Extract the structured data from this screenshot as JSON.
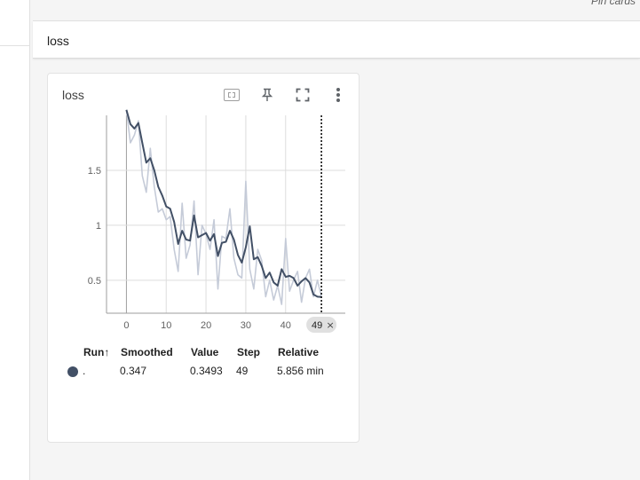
{
  "topbar": {
    "pin_cards": "Pin cards"
  },
  "group": {
    "title": "loss"
  },
  "card": {
    "title": "loss",
    "icons": [
      "fit-domain-icon",
      "pin-icon",
      "fullscreen-icon",
      "more-vert-icon"
    ],
    "step_badge": "49",
    "legend": {
      "headers": {
        "run": "Run",
        "smoothed": "Smoothed",
        "value": "Value",
        "step": "Step",
        "relative": "Relative"
      },
      "sort_arrow": "↑",
      "row": {
        "run": ".",
        "smoothed": "0.347",
        "value": "0.3493",
        "step": "49",
        "relative": "5.856 min",
        "color": "#425066"
      }
    }
  },
  "chart_data": {
    "type": "line",
    "x_ticks": [
      0,
      10,
      20,
      30,
      40
    ],
    "y_ticks": [
      0.5,
      1,
      1.5
    ],
    "y_tick_labels": [
      "0.5",
      "1",
      "1.5"
    ],
    "xlim": [
      -5,
      55
    ],
    "ylim": [
      0.2,
      2.0
    ],
    "grid": true,
    "cursor_step": 49,
    "series": [
      {
        "role": "raw",
        "color": "#c5cbd8",
        "x": [
          0,
          1,
          2,
          3,
          4,
          5,
          6,
          7,
          8,
          9,
          10,
          11,
          12,
          13,
          14,
          15,
          16,
          17,
          18,
          19,
          20,
          21,
          22,
          23,
          24,
          25,
          26,
          27,
          28,
          29,
          30,
          31,
          32,
          33,
          34,
          35,
          36,
          37,
          38,
          39,
          40,
          41,
          42,
          43,
          44,
          45,
          46,
          47,
          48,
          49
        ],
        "y": [
          2.05,
          1.75,
          1.82,
          1.95,
          1.45,
          1.3,
          1.7,
          1.35,
          1.12,
          1.15,
          1.05,
          1.08,
          0.78,
          0.58,
          1.2,
          0.7,
          0.82,
          1.22,
          0.55,
          1.0,
          0.92,
          0.78,
          1.05,
          0.42,
          0.9,
          0.88,
          1.15,
          0.7,
          0.55,
          0.52,
          1.4,
          0.6,
          0.42,
          0.78,
          0.68,
          0.35,
          0.5,
          0.32,
          0.45,
          0.28,
          0.88,
          0.4,
          0.5,
          0.58,
          0.3,
          0.52,
          0.6,
          0.35,
          0.5,
          0.349
        ]
      },
      {
        "role": "smoothed",
        "color": "#425066",
        "x": [
          0,
          1,
          2,
          3,
          4,
          5,
          6,
          7,
          8,
          9,
          10,
          11,
          12,
          13,
          14,
          15,
          16,
          17,
          18,
          19,
          20,
          21,
          22,
          23,
          24,
          25,
          26,
          27,
          28,
          29,
          30,
          31,
          32,
          33,
          34,
          35,
          36,
          37,
          38,
          39,
          40,
          41,
          42,
          43,
          44,
          45,
          46,
          47,
          48,
          49
        ],
        "y": [
          2.05,
          1.92,
          1.88,
          1.93,
          1.75,
          1.57,
          1.61,
          1.5,
          1.35,
          1.27,
          1.17,
          1.15,
          1.03,
          0.83,
          0.95,
          0.87,
          0.86,
          1.09,
          0.89,
          0.91,
          0.93,
          0.86,
          0.92,
          0.72,
          0.84,
          0.85,
          0.95,
          0.87,
          0.73,
          0.66,
          0.8,
          0.99,
          0.69,
          0.71,
          0.63,
          0.52,
          0.57,
          0.48,
          0.45,
          0.6,
          0.53,
          0.54,
          0.52,
          0.45,
          0.49,
          0.52,
          0.48,
          0.37,
          0.35,
          0.347
        ]
      }
    ]
  }
}
